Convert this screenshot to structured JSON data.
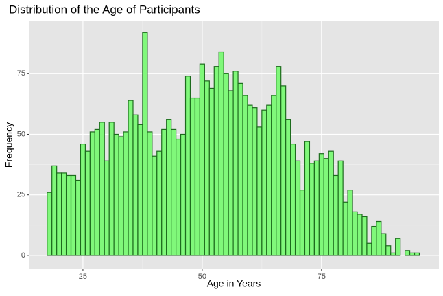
{
  "chart_data": {
    "type": "histogram",
    "title": "Distribution of the Age of Participants",
    "x_label": "Age in Years",
    "y_label": "Frequency",
    "bins": [
      17.5,
      18.5,
      19.5,
      20.5,
      21.5,
      22.5,
      23.5,
      24.5,
      25.5,
      26.5,
      27.5,
      28.5,
      29.5,
      30.5,
      31.5,
      32.5,
      33.5,
      34.5,
      35.5,
      36.5,
      37.5,
      38.5,
      39.5,
      40.5,
      41.5,
      42.5,
      43.5,
      44.5,
      45.5,
      46.5,
      47.5,
      48.5,
      49.5,
      50.5,
      51.5,
      52.5,
      53.5,
      54.5,
      55.5,
      56.5,
      57.5,
      58.5,
      59.5,
      60.5,
      61.5,
      62.5,
      63.5,
      64.5,
      65.5,
      66.5,
      67.5,
      68.5,
      69.5,
      70.5,
      71.5,
      72.5,
      73.5,
      74.5,
      75.5,
      76.5,
      77.5,
      78.5,
      79.5,
      80.5,
      81.5,
      82.5,
      83.5,
      84.5,
      85.5,
      86.5,
      87.5,
      88.5,
      89.5,
      90.5,
      91.5,
      92.5,
      93.5,
      94.5,
      95.5
    ],
    "values": [
      26,
      37,
      34,
      34,
      33,
      33,
      31,
      46,
      43,
      51,
      52,
      55,
      39,
      55,
      50,
      49,
      51,
      64,
      58,
      54,
      92,
      51,
      41,
      43,
      52,
      56,
      52,
      48,
      50,
      74,
      65,
      65,
      79,
      72,
      69,
      78,
      84,
      75,
      68,
      76,
      71,
      66,
      62,
      61,
      53,
      60,
      62,
      66,
      78,
      70,
      56,
      46,
      39,
      27,
      47,
      38,
      39,
      42,
      40,
      43,
      33,
      39,
      22,
      27,
      18,
      17,
      16,
      5,
      12,
      14,
      9,
      4,
      1,
      7,
      0,
      2,
      1,
      1
    ],
    "color": "#80f87a",
    "edge_color": "#1d6b1d",
    "xlim": [
      13.8,
      99.6
    ],
    "xticks": [
      25,
      50,
      75
    ],
    "ylim": [
      -5.7,
      96.9
    ],
    "yticks": [
      0,
      25,
      50,
      75
    ],
    "grid": true
  }
}
